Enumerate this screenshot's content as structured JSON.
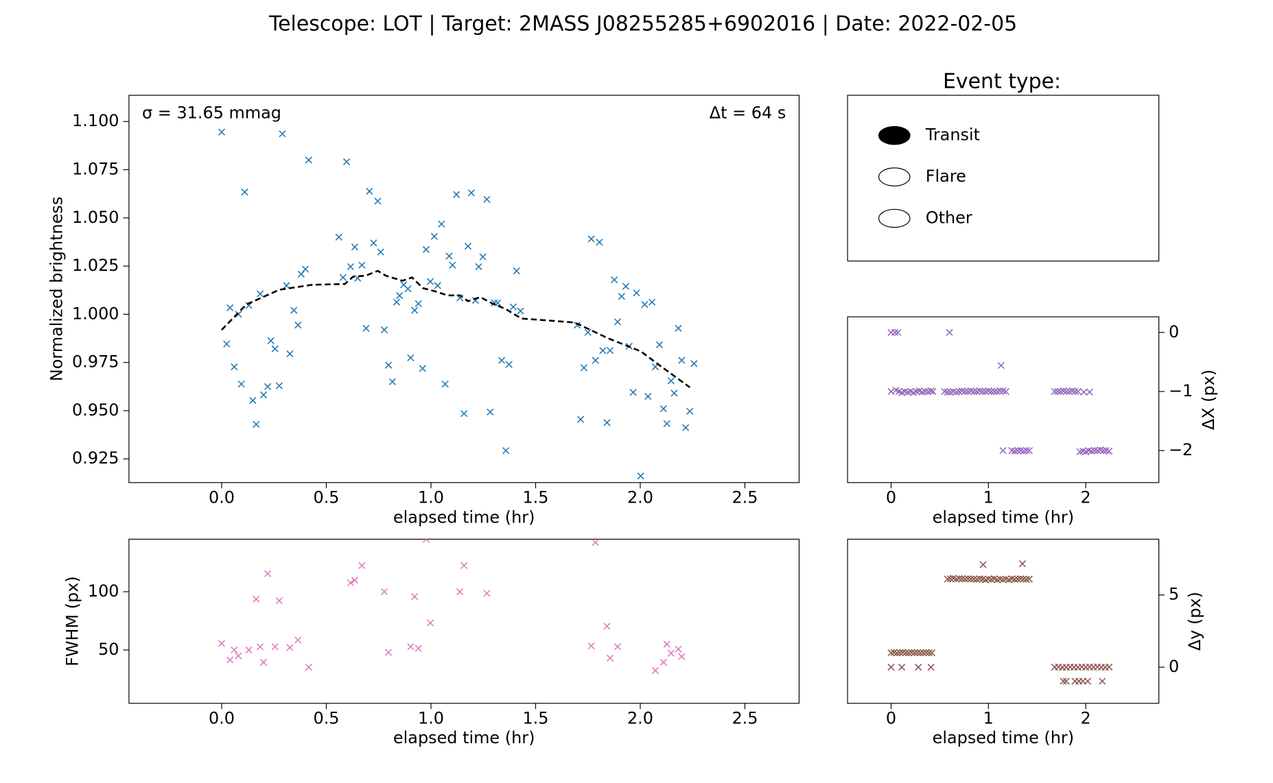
{
  "title": "Telescope: LOT  |  Target: 2MASS J08255285+6902016  |  Date: 2022-02-05",
  "legend": {
    "title": "Event type:",
    "items": [
      {
        "name": "Transit",
        "filled": true
      },
      {
        "name": "Flare",
        "filled": false
      },
      {
        "name": "Other",
        "filled": false
      }
    ]
  },
  "chart_data": [
    {
      "type": "scatter",
      "xlabel": "elapsed time (hr)",
      "ylabel": "Normalized brightness",
      "annotations": [
        "σ = 31.65 mmag",
        "Δt = 64 s"
      ],
      "yaxis_side": "left",
      "xlim": [
        -0.443,
        2.759
      ],
      "ylim": [
        0.9127,
        1.1136
      ],
      "xticks": [
        {
          "value": 0,
          "label": "0.0"
        },
        0.5,
        {
          "value": 1,
          "label": "1.0"
        },
        1.5,
        {
          "value": 2,
          "label": "2.0"
        },
        2.5
      ],
      "yticks": [
        0.925,
        {
          "value": 0.95,
          "label": "0.950"
        },
        0.975,
        {
          "value": 1,
          "label": "1.000"
        },
        1.025,
        {
          "value": 1.05,
          "label": "1.050"
        },
        1.075,
        {
          "value": 1.1,
          "label": "1.100"
        }
      ],
      "series": [
        {
          "type": "scatter",
          "marker": "x",
          "color": "#1f77b4",
          "x": [
            0.0,
            0.024,
            0.04,
            0.06,
            0.08,
            0.094,
            0.11,
            0.13,
            0.149,
            0.165,
            0.184,
            0.2,
            0.22,
            0.235,
            0.255,
            0.275,
            0.29,
            0.31,
            0.326,
            0.345,
            0.365,
            0.38,
            0.4,
            0.416,
            0.56,
            0.58,
            0.597,
            0.616,
            0.636,
            0.65,
            0.67,
            0.69,
            0.706,
            0.726,
            0.746,
            0.76,
            0.777,
            0.797,
            0.816,
            0.836,
            0.85,
            0.87,
            0.89,
            0.903,
            0.922,
            0.94,
            0.96,
            0.977,
            0.997,
            1.016,
            1.032,
            1.05,
            1.068,
            1.087,
            1.103,
            1.122,
            1.138,
            1.158,
            1.177,
            1.193,
            1.213,
            1.228,
            1.248,
            1.267,
            1.283,
            1.303,
            1.319,
            1.338,
            1.358,
            1.373,
            1.393,
            1.409,
            1.428,
            1.699,
            1.715,
            1.731,
            1.75,
            1.766,
            1.786,
            1.805,
            1.821,
            1.841,
            1.856,
            1.876,
            1.892,
            1.911,
            1.931,
            1.947,
            1.966,
            1.982,
            2.002,
            2.021,
            2.037,
            2.056,
            2.072,
            2.092,
            2.111,
            2.127,
            2.147,
            2.162,
            2.182,
            2.198,
            2.217,
            2.237,
            2.257
          ],
          "values": [
            1.0945,
            0.9846,
            1.0034,
            0.9727,
            1.0,
            0.9638,
            1.0634,
            1.0046,
            0.9553,
            0.9429,
            1.0106,
            0.9582,
            0.9625,
            0.9863,
            0.9821,
            0.9629,
            1.0936,
            1.0149,
            0.9795,
            1.0021,
            0.9944,
            1.0208,
            1.0234,
            1.08,
            1.04,
            1.0191,
            1.0791,
            1.0247,
            1.0349,
            1.0187,
            1.0255,
            0.9927,
            1.0638,
            1.037,
            1.0587,
            1.0323,
            0.9919,
            0.9736,
            0.965,
            1.0063,
            1.0097,
            1.0153,
            1.0132,
            0.9774,
            1.0021,
            1.0055,
            0.9719,
            1.0336,
            1.017,
            1.0404,
            1.0149,
            1.0468,
            0.9638,
            1.0302,
            1.0255,
            1.0621,
            1.0085,
            0.9485,
            1.0353,
            1.063,
            1.0072,
            1.0247,
            1.0298,
            1.0596,
            0.9493,
            1.0059,
            1.0059,
            0.9761,
            0.9293,
            0.974,
            1.0038,
            1.0225,
            1.0017,
            0.9944,
            0.9455,
            0.9723,
            0.9906,
            1.0391,
            0.9761,
            1.0374,
            0.9812,
            0.9438,
            0.9812,
            1.0179,
            0.9961,
            1.0093,
            1.0145,
            0.9834,
            0.9595,
            1.0111,
            0.9161,
            1.0051,
            0.9574,
            1.0063,
            0.9727,
            0.9842,
            0.951,
            0.9433,
            0.9655,
            0.9591,
            0.9927,
            0.9761,
            0.9412,
            0.9497,
            0.9744
          ]
        },
        {
          "type": "line",
          "style": "dashed",
          "color": "#000000",
          "x": [
            0,
            0.118,
            0.275,
            0.432,
            0.589,
            0.628,
            0.687,
            0.746,
            0.785,
            0.863,
            0.91,
            0.961,
            1.02,
            1.079,
            1.138,
            1.177,
            1.236,
            1.295,
            1.354,
            1.432,
            1.531,
            1.688,
            1.845,
            2.002,
            2.119,
            2.237
          ],
          "values": [
            0.9919,
            1.0051,
            1.0127,
            1.0153,
            1.0157,
            1.0195,
            1.02,
            1.0225,
            1.02,
            1.0174,
            1.0191,
            1.0136,
            1.0119,
            1.0098,
            1.0098,
            1.0068,
            1.0089,
            1.0055,
            1.0029,
            0.9978,
            0.997,
            0.9957,
            0.9876,
            0.9808,
            0.9714,
            0.9621
          ]
        }
      ]
    },
    {
      "type": "scatter",
      "xlabel": "elapsed time (hr)",
      "ylabel": "FWHM (px)",
      "yaxis_side": "left",
      "xlim": [
        -0.443,
        2.759
      ],
      "ylim": [
        4.2,
        145.1
      ],
      "xticks": [
        {
          "value": 0,
          "label": "0.0"
        },
        0.5,
        {
          "value": 1,
          "label": "1.0"
        },
        1.5,
        {
          "value": 2,
          "label": "2.0"
        },
        2.5
      ],
      "yticks": [
        50,
        100
      ],
      "series": [
        {
          "type": "scatter",
          "marker": "x",
          "color": "#e377c2",
          "x": [
            0.0,
            0.04,
            0.06,
            0.08,
            0.13,
            0.165,
            0.184,
            0.2,
            0.22,
            0.255,
            0.275,
            0.326,
            0.365,
            0.416,
            0.616,
            0.636,
            0.67,
            0.777,
            0.797,
            0.903,
            0.922,
            0.94,
            0.977,
            0.997,
            1.138,
            1.158,
            1.267,
            1.766,
            1.786,
            1.841,
            1.856,
            1.892,
            2.072,
            2.111,
            2.127,
            2.147,
            2.182,
            2.198
          ],
          "values": [
            55.6,
            41.5,
            50,
            45,
            50,
            93.7,
            52.8,
            39.4,
            115.5,
            52.8,
            92.3,
            52.1,
            58.5,
            35.2,
            107.7,
            109.9,
            122.5,
            100,
            47.9,
            52.8,
            95.8,
            51.4,
            145,
            73.2,
            100,
            122.5,
            98.6,
            53.5,
            142.3,
            70.4,
            43,
            52.8,
            32.4,
            39.4,
            54.9,
            47.2,
            50.7,
            44.4
          ]
        }
      ]
    },
    {
      "type": "scatter",
      "xlabel": "elapsed time (hr)",
      "ylabel": "ΔX (px)",
      "yaxis_side": "right",
      "xlim": [
        -0.447,
        2.751
      ],
      "ylim": [
        -2.542,
        0.264
      ],
      "xticks": [
        0,
        1,
        2
      ],
      "yticks": [
        {
          "value": -2,
          "label": "−2"
        },
        {
          "value": -1,
          "label": "−1"
        },
        0
      ],
      "series": [
        {
          "type": "scatter",
          "marker": "x",
          "color": "#9467bd",
          "x": [
            0.0,
            0.04,
            0.07,
            0.0,
            0.05,
            0.08,
            0.11,
            0.14,
            0.17,
            0.2,
            0.23,
            0.26,
            0.29,
            0.32,
            0.35,
            0.38,
            0.41,
            0.43,
            0.55,
            0.58,
            0.6,
            0.61,
            0.64,
            0.67,
            0.7,
            0.73,
            0.76,
            0.79,
            0.82,
            0.85,
            0.88,
            0.91,
            0.94,
            0.97,
            1.0,
            1.03,
            1.06,
            1.09,
            1.12,
            1.13,
            1.15,
            1.18,
            1.15,
            1.24,
            1.27,
            1.3,
            1.33,
            1.36,
            1.39,
            1.42,
            1.68,
            1.71,
            1.74,
            1.77,
            1.8,
            1.83,
            1.86,
            1.89,
            1.92,
            1.94,
            1.97,
            1.98,
            2.0,
            2.03,
            2.04,
            2.06,
            2.09,
            2.12,
            2.15,
            2.18,
            2.21,
            2.24
          ],
          "values": [
            0,
            0,
            0,
            -1,
            -0.98,
            -1,
            -1.02,
            -1,
            -1.01,
            -1,
            -1.02,
            -1,
            -0.99,
            -1.01,
            -1,
            -1,
            -0.99,
            -1,
            -1,
            -1.01,
            0,
            -1.01,
            -1,
            -1.01,
            -1,
            -0.99,
            -1,
            -1,
            -0.99,
            -1,
            -1,
            -0.99,
            -1,
            -1,
            -0.99,
            -1,
            -1,
            -1,
            -0.99,
            -0.56,
            -0.99,
            -1,
            -2,
            -2,
            -2.01,
            -2,
            -2,
            -2.01,
            -2,
            -2,
            -1,
            -1,
            -1,
            -0.99,
            -1,
            -1,
            -0.99,
            -1,
            -1,
            -2.02,
            -2.01,
            -1.01,
            -2.02,
            -2,
            -1.01,
            -2.01,
            -2,
            -2,
            -1.99,
            -2,
            -2,
            -2.01
          ]
        }
      ]
    },
    {
      "type": "scatter",
      "xlabel": "elapsed time (hr)",
      "ylabel": "Δy (px)",
      "yaxis_side": "right",
      "xlim": [
        -0.447,
        2.751
      ],
      "ylim": [
        -2.5,
        8.86
      ],
      "xticks": [
        0,
        1,
        2
      ],
      "yticks": [
        0,
        5
      ],
      "series": [
        {
          "type": "scatter",
          "marker": "x",
          "color": "#8c564b",
          "x": [
            0.0,
            0.03,
            0.06,
            0.09,
            0.12,
            0.15,
            0.18,
            0.21,
            0.24,
            0.27,
            0.3,
            0.33,
            0.36,
            0.39,
            0.42,
            0.0,
            0.11,
            0.28,
            0.41,
            0.58,
            0.61,
            0.64,
            0.67,
            0.7,
            0.73,
            0.76,
            0.79,
            0.82,
            0.85,
            0.88,
            0.91,
            0.94,
            0.97,
            1.0,
            1.03,
            1.06,
            1.09,
            1.12,
            1.15,
            1.18,
            1.21,
            1.24,
            1.27,
            1.3,
            1.33,
            1.36,
            1.39,
            1.42,
            0.945,
            1.35,
            1.68,
            1.72,
            1.76,
            1.8,
            1.84,
            1.88,
            1.92,
            1.96,
            2.0,
            2.04,
            2.08,
            2.12,
            2.16,
            2.2,
            2.24,
            1.77,
            1.8,
            1.89,
            1.93,
            1.97,
            2.02,
            2.17
          ],
          "values": [
            1.0,
            1.02,
            0.98,
            1.0,
            1.03,
            1.0,
            0.99,
            1.02,
            1.0,
            1.01,
            0.99,
            1.0,
            1.02,
            1.0,
            0.99,
            0,
            0,
            0,
            0,
            6.1,
            6.12,
            6.15,
            6.1,
            6.14,
            6.12,
            6.1,
            6.13,
            6.11,
            6.1,
            6.08,
            6.12,
            6.1,
            6.05,
            6.1,
            6.08,
            6.12,
            6.05,
            6.1,
            6.07,
            6.1,
            6.05,
            6.12,
            6.08,
            6.1,
            6.12,
            6.1,
            6.08,
            6.1,
            7.1,
            7.16,
            0,
            0.02,
            -0.02,
            0,
            0.01,
            0,
            -0.01,
            0.02,
            0,
            0.01,
            0,
            0.02,
            0,
            -0.01,
            0.01,
            -0.97,
            -0.97,
            -0.97,
            -0.97,
            -0.97,
            -0.97,
            -0.97
          ]
        }
      ]
    }
  ]
}
